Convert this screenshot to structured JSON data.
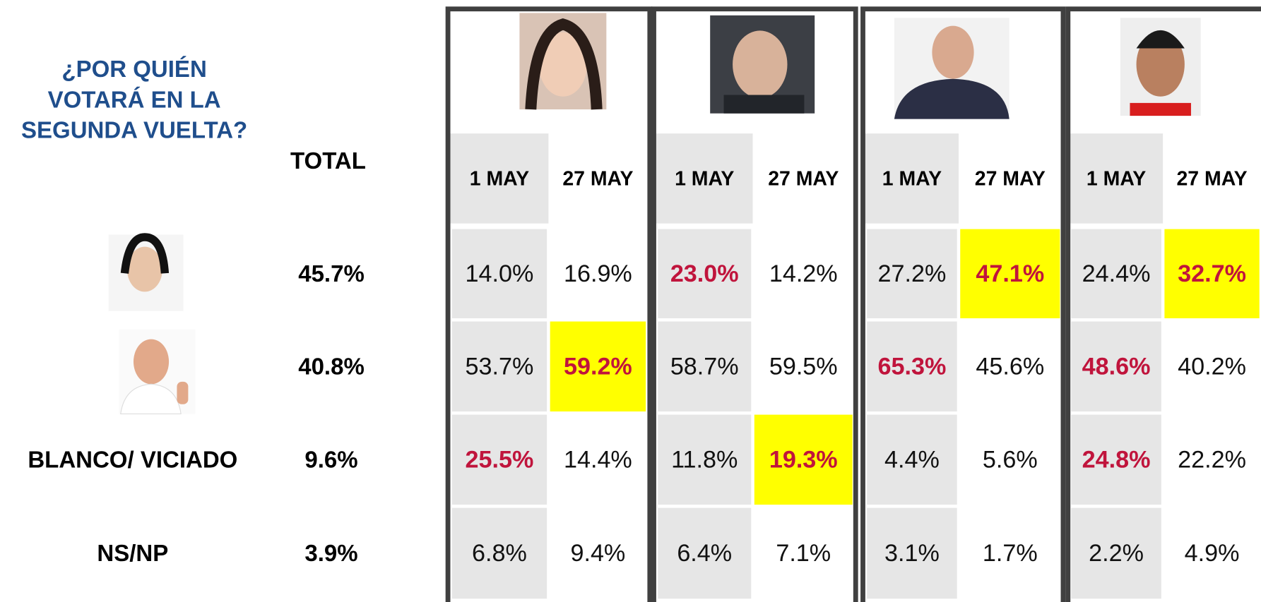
{
  "title": [
    "¿POR QUIÉN",
    "VOTARÁ EN LA",
    "SEGUNDA VUELTA?"
  ],
  "total_label": "TOTAL",
  "groups": [
    {
      "dates": [
        "1 MAY",
        "27 MAY"
      ]
    },
    {
      "dates": [
        "1 MAY",
        "27 MAY"
      ]
    },
    {
      "dates": [
        "1 MAY",
        "27 MAY"
      ]
    },
    {
      "dates": [
        "1 MAY",
        "27 MAY"
      ]
    }
  ],
  "rows": [
    {
      "total": "45.7%",
      "cells": [
        "14.0%",
        "16.9%",
        {
          "text": "23.0%",
          "color": "#c0143c"
        },
        "14.2%",
        "27.2%",
        {
          "text": "47.1%",
          "color": "#c0143c",
          "fill": "#ffff00"
        },
        "24.4%",
        {
          "text": "32.7%",
          "color": "#c0143c",
          "fill": "#ffff00"
        }
      ]
    },
    {
      "total": "40.8%",
      "cells": [
        "53.7%",
        {
          "text": "59.2%",
          "color": "#c0143c",
          "fill": "#ffff00"
        },
        "58.7%",
        "59.5%",
        {
          "text": "65.3%",
          "color": "#c0143c"
        },
        "45.6%",
        {
          "text": "48.6%",
          "color": "#c0143c"
        },
        "40.2%"
      ]
    },
    {
      "label": "BLANCO/ VICIADO",
      "total": "9.6%",
      "cells": [
        {
          "text": "25.5%",
          "color": "#c0143c"
        },
        "14.4%",
        "11.8%",
        {
          "text": "19.3%",
          "color": "#c0143c",
          "fill": "#ffff00"
        },
        "4.4%",
        "5.6%",
        {
          "text": "24.8%",
          "color": "#c0143c"
        },
        "22.2%"
      ]
    },
    {
      "label": "NS/NP",
      "total": "3.9%",
      "cells": [
        "6.8%",
        "9.4%",
        "6.4%",
        "7.1%",
        "3.1%",
        "1.7%",
        "2.2%",
        "4.9%"
      ]
    }
  ]
}
